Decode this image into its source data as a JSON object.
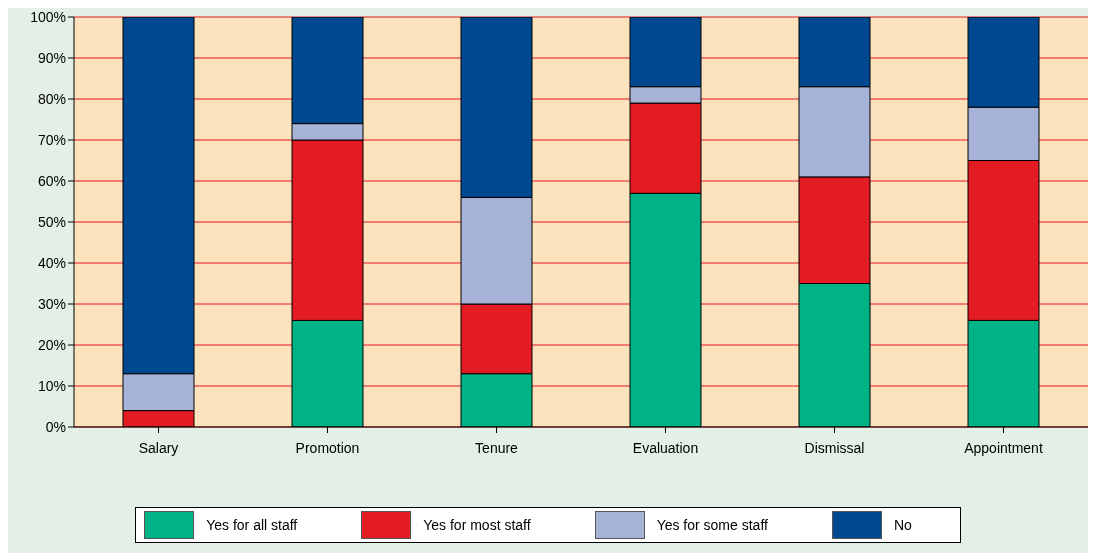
{
  "chart_data": {
    "type": "bar",
    "stacked": true,
    "categories": [
      "Salary",
      "Promotion",
      "Tenure",
      "Evaluation",
      "Dismissal",
      "Appointment"
    ],
    "series": [
      {
        "name": "Yes for all staff",
        "color": "#00b386",
        "values": [
          0,
          26,
          13,
          57,
          35,
          26
        ]
      },
      {
        "name": "Yes for most staff",
        "color": "#e31b23",
        "values": [
          4,
          44,
          17,
          22,
          26,
          39
        ]
      },
      {
        "name": "Yes for some staff",
        "color": "#a6b3d6",
        "values": [
          9,
          4,
          26,
          4,
          22,
          13
        ]
      },
      {
        "name": "No",
        "color": "#004990",
        "values": [
          87,
          26,
          44,
          17,
          17,
          22
        ]
      }
    ],
    "ylim": [
      0,
      100
    ],
    "yticks": [
      {
        "value": 0,
        "label": "0%"
      },
      {
        "value": 10,
        "label": "10%"
      },
      {
        "value": 20,
        "label": "20%"
      },
      {
        "value": 30,
        "label": "30%"
      },
      {
        "value": 40,
        "label": "40%"
      },
      {
        "value": 50,
        "label": "50%"
      },
      {
        "value": 60,
        "label": "60%"
      },
      {
        "value": 70,
        "label": "70%"
      },
      {
        "value": 80,
        "label": "80%"
      },
      {
        "value": 90,
        "label": "90%"
      },
      {
        "value": 100,
        "label": "100%"
      }
    ],
    "grid": "y",
    "legend": "bottom"
  }
}
